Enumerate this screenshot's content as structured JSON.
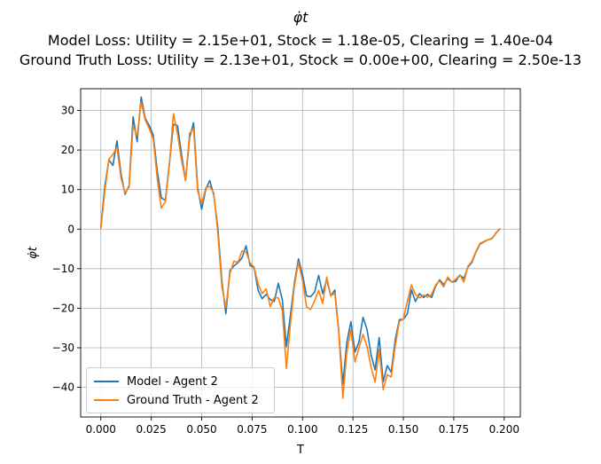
{
  "title": {
    "line1": "φ̇t",
    "line2": "Model Loss: Utility = 2.15e+01, Stock = 1.18e-05, Clearing = 1.40e-04",
    "line3": "Ground Truth Loss: Utility = 2.13e+01, Stock = 0.00e+00, Clearing = 2.50e-13"
  },
  "chart_data": {
    "type": "line",
    "title": "φ̇t",
    "xlabel": "T",
    "ylabel": "φ̇t",
    "xlim": [
      -0.01,
      0.208
    ],
    "ylim": [
      -47.5,
      35.5
    ],
    "xticks": [
      0.0,
      0.025,
      0.05,
      0.075,
      0.1,
      0.125,
      0.15,
      0.175,
      0.2
    ],
    "xtick_labels": [
      "0.000",
      "0.025",
      "0.050",
      "0.075",
      "0.100",
      "0.125",
      "0.150",
      "0.175",
      "0.200"
    ],
    "yticks": [
      -40,
      -30,
      -20,
      -10,
      0,
      10,
      20,
      30
    ],
    "ytick_labels": [
      "−40",
      "−30",
      "−20",
      "−10",
      "0",
      "10",
      "20",
      "30"
    ],
    "grid": true,
    "legend_position": "lower-left",
    "x_start": 0.0,
    "x_step": 0.002,
    "series": [
      {
        "name": "Model - Agent 2",
        "color": "#1f77b4",
        "values": [
          0.3,
          11,
          17.5,
          16.1,
          22.3,
          14,
          8.8,
          11,
          28.4,
          22.1,
          33.4,
          28,
          26.2,
          23.7,
          14.6,
          7.9,
          7.3,
          16.6,
          26.5,
          26.2,
          19,
          12.2,
          23.1,
          26.9,
          10.5,
          5,
          10,
          12.3,
          8.6,
          0.4,
          -13.1,
          -21.4,
          -10.5,
          -9.3,
          -8.5,
          -7.3,
          -4.2,
          -9.2,
          -9.7,
          -15.5,
          -17.6,
          -16.5,
          -17.8,
          -18.3,
          -13.7,
          -17.9,
          -29.7,
          -21.8,
          -13.5,
          -7.5,
          -11.5,
          -16.9,
          -17.1,
          -15.9,
          -11.7,
          -16.3,
          -12.7,
          -16.9,
          -15.4,
          -26,
          -39.2,
          -28.5,
          -23.4,
          -31.1,
          -28.5,
          -22.3,
          -25.4,
          -31.8,
          -35.6,
          -27.4,
          -38.6,
          -34.5,
          -36.2,
          -27.9,
          -22.9,
          -22.8,
          -21.4,
          -15.3,
          -18.3,
          -16.3,
          -17.3,
          -16.5,
          -17.3,
          -14.4,
          -12.8,
          -14.1,
          -12.5,
          -13.4,
          -13.2,
          -11.6,
          -12.5,
          -9.6,
          -8.4,
          -5.8,
          -3.8,
          -3.2,
          -2.7,
          -2.4,
          -0.9,
          0.2
        ]
      },
      {
        "name": "Ground Truth - Agent 2",
        "color": "#ff7f0e",
        "values": [
          0,
          9.7,
          17.7,
          18.9,
          20.7,
          12.9,
          9.2,
          10.6,
          26.1,
          23.6,
          32.1,
          27.6,
          25.4,
          22.8,
          12.6,
          5.3,
          6.9,
          16.2,
          29.2,
          24.1,
          17.5,
          12.2,
          24.3,
          25.3,
          9.7,
          6.4,
          10.4,
          10.8,
          9.1,
          -0.9,
          -14.5,
          -19.8,
          -11.2,
          -8.1,
          -8.4,
          -5.5,
          -5.8,
          -8.5,
          -9.6,
          -13.9,
          -16.3,
          -15.1,
          -19.6,
          -17.3,
          -17.4,
          -20.6,
          -35.2,
          -24,
          -14.2,
          -8.4,
          -13,
          -19.7,
          -20.3,
          -18.1,
          -15.5,
          -18.8,
          -12.1,
          -16.8,
          -16.3,
          -26.2,
          -42.8,
          -30.9,
          -25.4,
          -33.6,
          -30,
          -26.6,
          -29.7,
          -34.9,
          -38.7,
          -30.4,
          -40.6,
          -36.8,
          -37.4,
          -29.4,
          -23.3,
          -22.8,
          -18.2,
          -14.1,
          -16.5,
          -17.4,
          -16.7,
          -17.2,
          -16.5,
          -14.1,
          -13.1,
          -14.6,
          -12.1,
          -13.4,
          -12.7,
          -11.6,
          -13.4,
          -9.4,
          -8.1,
          -5.6,
          -3.6,
          -3.1,
          -2.7,
          -2.3,
          -1,
          0.1
        ]
      }
    ]
  }
}
